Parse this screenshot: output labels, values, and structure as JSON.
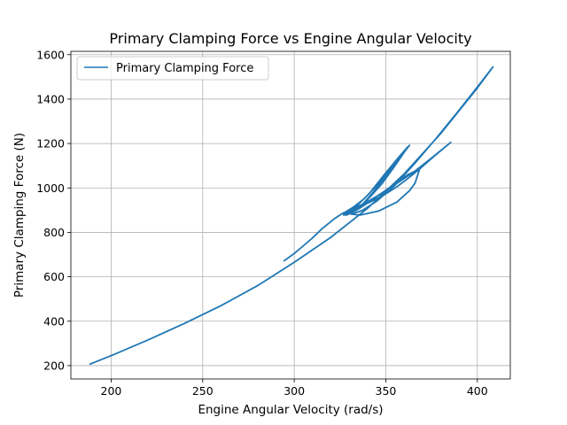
{
  "chart_data": {
    "type": "line",
    "title": "Primary Clamping Force vs Engine Angular Velocity",
    "xlabel": "Engine Angular Velocity (rad/s)",
    "ylabel": "Primary Clamping Force (N)",
    "xlim": [
      178,
      418
    ],
    "ylim": [
      140,
      1615
    ],
    "xticks": [
      200,
      250,
      300,
      350,
      400
    ],
    "yticks": [
      200,
      400,
      600,
      800,
      1000,
      1200,
      1400,
      1600
    ],
    "grid": true,
    "legend_position": "top-left",
    "series": [
      {
        "name": "Primary Clamping Force",
        "color": "#1f77b4",
        "points": [
          [
            188.5,
            207
          ],
          [
            200,
            245
          ],
          [
            220,
            315
          ],
          [
            240,
            390
          ],
          [
            260,
            470
          ],
          [
            280,
            560
          ],
          [
            300,
            665
          ],
          [
            320,
            778
          ],
          [
            340,
            908
          ],
          [
            360,
            1063
          ],
          [
            380,
            1245
          ],
          [
            400,
            1450
          ],
          [
            408.5,
            1545
          ],
          [
            402,
            1475
          ],
          [
            390,
            1350
          ],
          [
            378,
            1228
          ],
          [
            366,
            1112
          ],
          [
            355,
            1012
          ],
          [
            345,
            940
          ],
          [
            337,
            898
          ],
          [
            331,
            882
          ],
          [
            336,
            878
          ],
          [
            346,
            896
          ],
          [
            356,
            936
          ],
          [
            363,
            988
          ],
          [
            366,
            1022
          ],
          [
            368.5,
            1085
          ],
          [
            362,
            1060
          ],
          [
            352,
            1002
          ],
          [
            343,
            948
          ],
          [
            335,
            905
          ],
          [
            329,
            879
          ],
          [
            327,
            878
          ],
          [
            330,
            887
          ],
          [
            334,
            900
          ],
          [
            338,
            933
          ],
          [
            344,
            990
          ],
          [
            352,
            1075
          ],
          [
            358,
            1137
          ],
          [
            362,
            1185
          ],
          [
            357,
            1138
          ],
          [
            349,
            1058
          ],
          [
            341,
            975
          ],
          [
            334,
            918
          ],
          [
            329,
            888
          ],
          [
            327,
            880
          ],
          [
            331,
            895
          ],
          [
            336,
            915
          ],
          [
            342,
            965
          ],
          [
            348,
            1020
          ],
          [
            355,
            1100
          ],
          [
            361,
            1172
          ],
          [
            363,
            1192
          ],
          [
            359,
            1150
          ],
          [
            352,
            1085
          ],
          [
            345,
            1010
          ],
          [
            338,
            950
          ],
          [
            332,
            912
          ],
          [
            328,
            892
          ],
          [
            333,
            905
          ],
          [
            341,
            935
          ],
          [
            349,
            968
          ],
          [
            356,
            1005
          ],
          [
            362,
            1042
          ],
          [
            368,
            1082
          ],
          [
            371,
            1104
          ],
          [
            376,
            1140
          ],
          [
            385.5,
            1205
          ],
          [
            375,
            1135
          ],
          [
            365,
            1070
          ],
          [
            355,
            1015
          ],
          [
            345,
            962
          ],
          [
            337,
            925
          ],
          [
            330,
            900
          ],
          [
            326,
            884
          ],
          [
            322,
            862
          ],
          [
            315,
            815
          ],
          [
            310,
            775
          ],
          [
            305,
            740
          ],
          [
            300,
            705
          ],
          [
            294.5,
            672
          ]
        ]
      }
    ]
  }
}
